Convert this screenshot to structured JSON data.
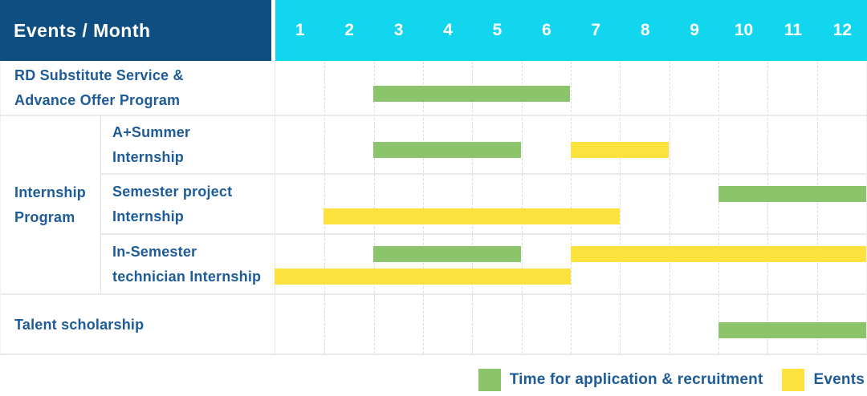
{
  "header": {
    "title": "Events / Month"
  },
  "chart_data": {
    "type": "gantt",
    "x_axis_label": "Month",
    "x_ticks": [
      "1",
      "2",
      "3",
      "4",
      "5",
      "6",
      "7",
      "8",
      "9",
      "10",
      "11",
      "12"
    ],
    "x_range": [
      1,
      12
    ],
    "group": {
      "label": "Internship\nProgram"
    },
    "rows": [
      {
        "label": "RD Substitute Service &\nAdvance Offer Program",
        "in_group": false,
        "bars": [
          {
            "series": "application",
            "start_month": 3,
            "end_month": 6,
            "track": "single"
          }
        ]
      },
      {
        "label": "A+Summer\nInternship",
        "in_group": true,
        "bars": [
          {
            "series": "application",
            "start_month": 3,
            "end_month": 5,
            "track": "single"
          },
          {
            "series": "events",
            "start_month": 7,
            "end_month": 8,
            "track": "single"
          }
        ]
      },
      {
        "label": "Semester project\nInternship",
        "in_group": true,
        "bars": [
          {
            "series": "application",
            "start_month": 10,
            "end_month": 12,
            "track": "top"
          },
          {
            "series": "events",
            "start_month": 2,
            "end_month": 7,
            "track": "bottom"
          }
        ]
      },
      {
        "label": "In-Semester\ntechnician Internship",
        "in_group": true,
        "bars": [
          {
            "series": "application",
            "start_month": 3,
            "end_month": 5,
            "track": "top"
          },
          {
            "series": "events",
            "start_month": 7,
            "end_month": 12,
            "track": "top"
          },
          {
            "series": "events",
            "start_month": 1,
            "end_month": 6,
            "track": "bottom"
          }
        ]
      },
      {
        "label": "Talent scholarship",
        "in_group": false,
        "bars": [
          {
            "series": "application",
            "start_month": 10,
            "end_month": 12,
            "track": "single"
          }
        ]
      }
    ]
  },
  "legend": {
    "items": [
      {
        "series": "application",
        "label": "Time for application & recruitment"
      },
      {
        "series": "events",
        "label": "Events"
      }
    ]
  },
  "colors": {
    "header_blue": "#0f4e80",
    "header_cyan": "#12d6ee",
    "green": "#8bc46b",
    "yellow": "#fde23e",
    "text_blue": "#1d5b99"
  }
}
